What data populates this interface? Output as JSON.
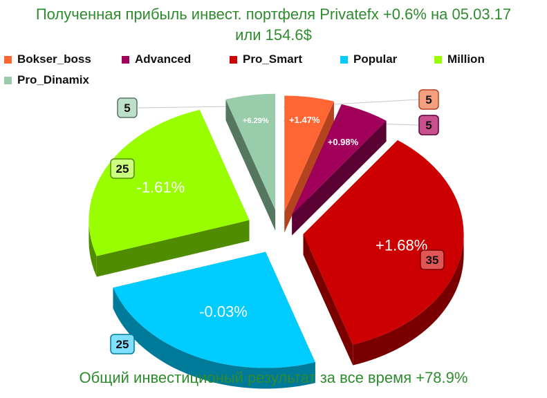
{
  "title_line1": "Полученная прибыль инвест. портфеля Privatefx +0.6% на 05.03.17",
  "title_line2": "или 154.6$",
  "footer": "Общий инвестиционый результат за все время +78.9%",
  "chart_data": {
    "type": "pie",
    "title": "Полученная прибыль инвест. портфеля Privatefx +0.6% на 05.03.17 или 154.6$",
    "legend_placement": "top",
    "slices": [
      {
        "name": "Bokser_boss",
        "value": 5,
        "label": "+1.47%",
        "color": "#ff6633",
        "side": "#b3441f",
        "callout": "5",
        "callout_color": "#f4a080"
      },
      {
        "name": "Advanced",
        "value": 5,
        "label": "+0.98%",
        "color": "#a0005a",
        "side": "#5a0033",
        "callout": "5",
        "callout_color": "#c8508c"
      },
      {
        "name": "Pro_Smart",
        "value": 35,
        "label": "+1.68%",
        "color": "#cc0000",
        "side": "#7a0000",
        "callout": "35",
        "callout_color": "#e05555"
      },
      {
        "name": "Popular",
        "value": 25,
        "label": "-0.03%",
        "color": "#00ccff",
        "side": "#007a99",
        "callout": "25",
        "callout_color": "#7fdfff"
      },
      {
        "name": "Million",
        "value": 25,
        "label": "-1.61%",
        "color": "#99ff00",
        "side": "#4f8c00",
        "callout": "25",
        "callout_color": "#ccff80"
      },
      {
        "name": "Pro_Dinamix",
        "value": 5,
        "label": "+6.29%",
        "color": "#99ccaa",
        "side": "#557760",
        "callout": "5",
        "callout_color": "#bfe0c8"
      }
    ]
  }
}
